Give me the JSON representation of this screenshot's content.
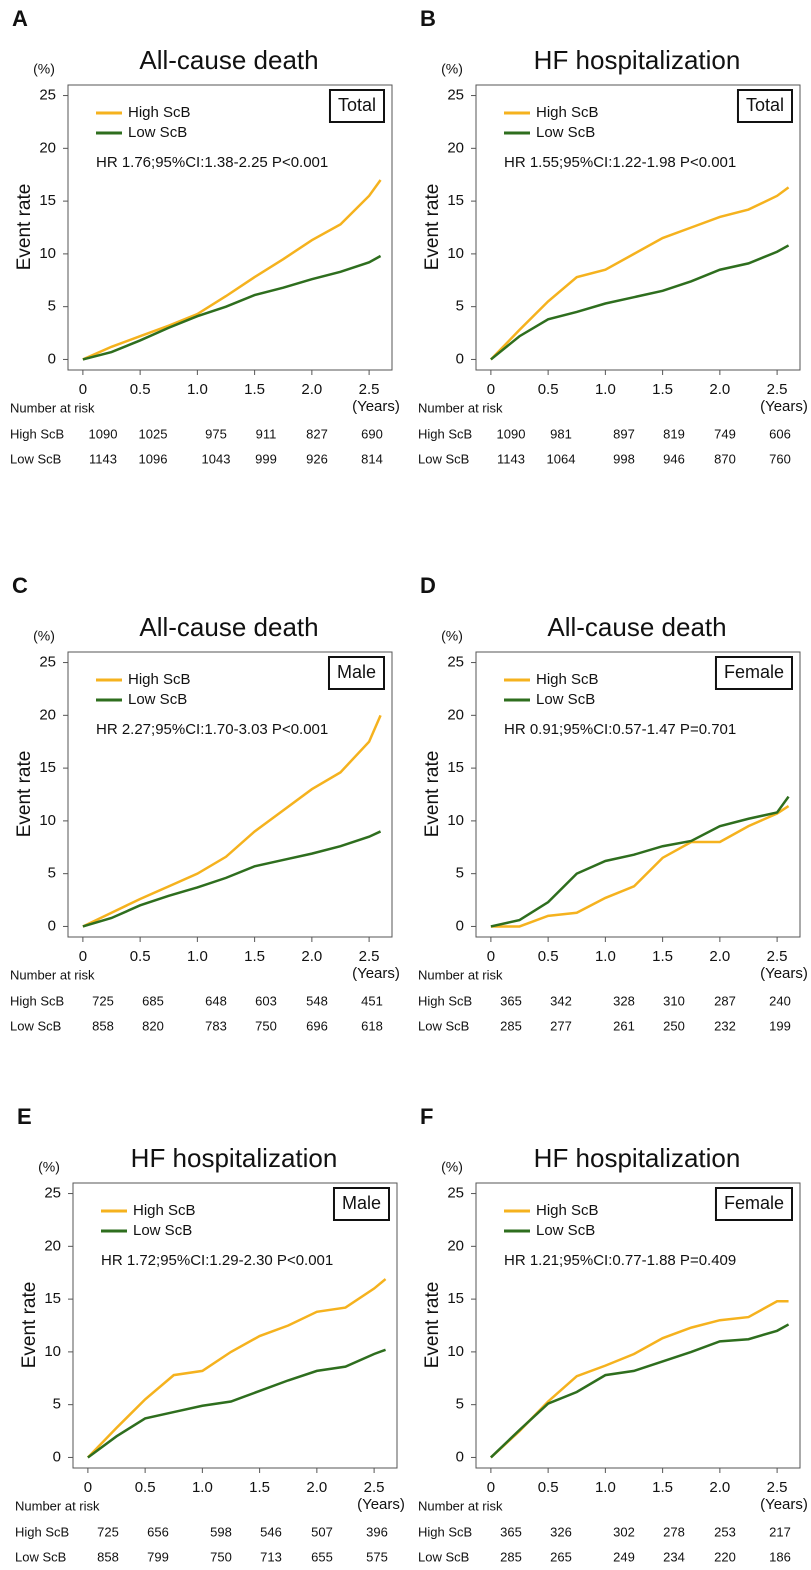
{
  "chart_data": [
    {
      "type": "line",
      "panel": "A",
      "title": "All-cause death",
      "box_label": "Total",
      "annotation": "HR 1.76;95%CI:1.38-2.25  P<0.001",
      "ylabel": "Event rate",
      "y_unit": "(%)",
      "x_unit": "(Years)",
      "x": [
        0,
        0.25,
        0.5,
        0.75,
        1,
        1.25,
        1.5,
        1.75,
        2,
        2.25,
        2.5,
        2.6
      ],
      "series": [
        {
          "name": "High ScB",
          "color": "#f5b21e",
          "values": [
            0,
            1.2,
            2.2,
            3.2,
            4.3,
            6,
            7.8,
            9.5,
            11.3,
            12.8,
            15.5,
            17
          ]
        },
        {
          "name": "Low ScB",
          "color": "#2e6e1e",
          "values": [
            0,
            0.7,
            1.8,
            3,
            4.1,
            5,
            6.1,
            6.8,
            7.6,
            8.3,
            9.2,
            9.8
          ]
        }
      ],
      "xlim": [
        -0.13,
        2.7
      ],
      "ylim": [
        -1,
        26
      ],
      "yticks": [
        0,
        5,
        10,
        15,
        20,
        25
      ],
      "xticks": [
        0,
        0.5,
        {
          "value": 1,
          "label": "1.0"
        },
        1.5,
        {
          "value": 2,
          "label": "2.0"
        },
        2.5
      ],
      "risk_table": {
        "title": "Number at risk",
        "rows": [
          {
            "name": "High ScB",
            "values": [
              1090,
              1025,
              975,
              911,
              827,
              690
            ]
          },
          {
            "name": "Low ScB",
            "values": [
              1143,
              1096,
              1043,
              999,
              926,
              814
            ]
          }
        ]
      }
    },
    {
      "type": "line",
      "panel": "B",
      "title": "HF hospitalization",
      "box_label": "Total",
      "annotation": "HR 1.55;95%CI:1.22-1.98  P<0.001",
      "ylabel": "Event rate",
      "y_unit": "(%)",
      "x_unit": "(Years)",
      "x": [
        0,
        0.25,
        0.5,
        0.75,
        1,
        1.25,
        1.5,
        1.75,
        2,
        2.25,
        2.5,
        2.6
      ],
      "series": [
        {
          "name": "High ScB",
          "color": "#f5b21e",
          "values": [
            0,
            2.8,
            5.5,
            7.8,
            8.5,
            10,
            11.5,
            12.5,
            13.5,
            14.2,
            15.5,
            16.3
          ]
        },
        {
          "name": "Low ScB",
          "color": "#2e6e1e",
          "values": [
            0,
            2.2,
            3.8,
            4.5,
            5.3,
            5.9,
            6.5,
            7.4,
            8.5,
            9.1,
            10.2,
            10.8
          ]
        }
      ],
      "xlim": [
        -0.13,
        2.7
      ],
      "ylim": [
        -1,
        26
      ],
      "yticks": [
        0,
        5,
        10,
        15,
        20,
        25
      ],
      "xticks": [
        0,
        0.5,
        {
          "value": 1,
          "label": "1.0"
        },
        1.5,
        {
          "value": 2,
          "label": "2.0"
        },
        2.5
      ],
      "risk_table": {
        "title": "Number at risk",
        "rows": [
          {
            "name": "High ScB",
            "values": [
              1090,
              981,
              897,
              819,
              749,
              606
            ]
          },
          {
            "name": "Low ScB",
            "values": [
              1143,
              1064,
              998,
              946,
              870,
              760
            ]
          }
        ]
      }
    },
    {
      "type": "line",
      "panel": "C",
      "title": "All-cause death",
      "box_label": "Male",
      "annotation": "HR 2.27;95%CI:1.70-3.03  P<0.001",
      "ylabel": "Event rate",
      "y_unit": "(%)",
      "x_unit": "(Years)",
      "x": [
        0,
        0.25,
        0.5,
        0.75,
        1,
        1.25,
        1.5,
        1.75,
        2,
        2.25,
        2.5,
        2.6
      ],
      "series": [
        {
          "name": "High ScB",
          "color": "#f5b21e",
          "values": [
            0,
            1.3,
            2.6,
            3.8,
            5,
            6.6,
            9,
            11,
            13,
            14.6,
            17.5,
            20
          ]
        },
        {
          "name": "Low ScB",
          "color": "#2e6e1e",
          "values": [
            0,
            0.8,
            2,
            2.9,
            3.7,
            4.6,
            5.7,
            6.3,
            6.9,
            7.6,
            8.5,
            9
          ]
        }
      ],
      "xlim": [
        -0.13,
        2.7
      ],
      "ylim": [
        -1,
        26
      ],
      "yticks": [
        0,
        5,
        10,
        15,
        20,
        25
      ],
      "xticks": [
        0,
        0.5,
        {
          "value": 1,
          "label": "1.0"
        },
        1.5,
        {
          "value": 2,
          "label": "2.0"
        },
        2.5
      ],
      "risk_table": {
        "title": "Number at risk",
        "rows": [
          {
            "name": "High ScB",
            "values": [
              725,
              685,
              648,
              603,
              548,
              451
            ]
          },
          {
            "name": "Low ScB",
            "values": [
              858,
              820,
              783,
              750,
              696,
              618
            ]
          }
        ]
      }
    },
    {
      "type": "line",
      "panel": "D",
      "title": "All-cause death",
      "box_label": "Female",
      "annotation": "HR 0.91;95%CI:0.57-1.47  P=0.701",
      "ylabel": "Event rate",
      "y_unit": "(%)",
      "x_unit": "(Years)",
      "x": [
        0,
        0.25,
        0.5,
        0.75,
        1,
        1.25,
        1.5,
        1.75,
        2,
        2.25,
        2.5,
        2.6
      ],
      "series": [
        {
          "name": "High ScB",
          "color": "#f5b21e",
          "values": [
            0,
            0,
            1,
            1.3,
            2.7,
            3.8,
            6.5,
            8,
            8,
            9.5,
            10.7,
            11.4
          ]
        },
        {
          "name": "Low ScB",
          "color": "#2e6e1e",
          "values": [
            0,
            0.6,
            2.3,
            5,
            6.2,
            6.8,
            7.6,
            8.1,
            9.5,
            10.2,
            10.8,
            12.3
          ]
        }
      ],
      "xlim": [
        -0.13,
        2.7
      ],
      "ylim": [
        -1,
        26
      ],
      "yticks": [
        0,
        5,
        10,
        15,
        20,
        25
      ],
      "xticks": [
        0,
        0.5,
        {
          "value": 1,
          "label": "1.0"
        },
        1.5,
        {
          "value": 2,
          "label": "2.0"
        },
        2.5
      ],
      "risk_table": {
        "title": "Number at risk",
        "rows": [
          {
            "name": "High ScB",
            "values": [
              365,
              342,
              328,
              310,
              287,
              240
            ]
          },
          {
            "name": "Low ScB",
            "values": [
              285,
              277,
              261,
              250,
              232,
              199
            ]
          }
        ]
      }
    },
    {
      "type": "line",
      "panel": "E",
      "title": "HF hospitalization",
      "box_label": "Male",
      "annotation": "HR 1.72;95%CI:1.29-2.30  P<0.001",
      "ylabel": "Event rate",
      "y_unit": "(%)",
      "x_unit": "(Years)",
      "x": [
        0,
        0.25,
        0.5,
        0.75,
        1,
        1.25,
        1.5,
        1.75,
        2,
        2.25,
        2.5,
        2.6
      ],
      "series": [
        {
          "name": "High ScB",
          "color": "#f5b21e",
          "values": [
            0,
            2.8,
            5.5,
            7.8,
            8.2,
            10,
            11.5,
            12.5,
            13.8,
            14.2,
            16,
            16.9
          ]
        },
        {
          "name": "Low ScB",
          "color": "#2e6e1e",
          "values": [
            0,
            2,
            3.7,
            4.3,
            4.9,
            5.3,
            6.3,
            7.3,
            8.2,
            8.6,
            9.8,
            10.2
          ]
        }
      ],
      "xlim": [
        -0.13,
        2.7
      ],
      "ylim": [
        -1,
        26
      ],
      "yticks": [
        0,
        5,
        10,
        15,
        20,
        25
      ],
      "xticks": [
        0,
        0.5,
        {
          "value": 1,
          "label": "1.0"
        },
        1.5,
        {
          "value": 2,
          "label": "2.0"
        },
        2.5
      ],
      "risk_table": {
        "title": "Number at risk",
        "rows": [
          {
            "name": "High ScB",
            "values": [
              725,
              656,
              598,
              546,
              507,
              396
            ]
          },
          {
            "name": "Low ScB",
            "values": [
              858,
              799,
              750,
              713,
              655,
              575
            ]
          }
        ]
      }
    },
    {
      "type": "line",
      "panel": "F",
      "title": "HF hospitalization",
      "box_label": "Female",
      "annotation": "HR 1.21;95%CI:0.77-1.88  P=0.409",
      "ylabel": "Event rate",
      "y_unit": "(%)",
      "x_unit": "(Years)",
      "x": [
        0,
        0.25,
        0.5,
        0.75,
        1,
        1.25,
        1.5,
        1.75,
        2,
        2.25,
        2.5,
        2.6
      ],
      "series": [
        {
          "name": "High ScB",
          "color": "#f5b21e",
          "values": [
            0,
            2.5,
            5.3,
            7.7,
            8.7,
            9.8,
            11.3,
            12.3,
            13,
            13.3,
            14.8,
            14.8
          ]
        },
        {
          "name": "Low ScB",
          "color": "#2e6e1e",
          "values": [
            0,
            2.6,
            5.1,
            6.2,
            7.8,
            8.2,
            9.1,
            10,
            11,
            11.2,
            12,
            12.6
          ]
        }
      ],
      "xlim": [
        -0.13,
        2.7
      ],
      "ylim": [
        -1,
        26
      ],
      "yticks": [
        0,
        5,
        10,
        15,
        20,
        25
      ],
      "xticks": [
        0,
        0.5,
        {
          "value": 1,
          "label": "1.0"
        },
        1.5,
        {
          "value": 2,
          "label": "2.0"
        },
        2.5
      ],
      "risk_table": {
        "title": "Number at risk",
        "rows": [
          {
            "name": "High ScB",
            "values": [
              365,
              326,
              302,
              278,
              253,
              217
            ]
          },
          {
            "name": "Low ScB",
            "values": [
              285,
              265,
              249,
              234,
              220,
              186
            ]
          }
        ]
      }
    }
  ]
}
